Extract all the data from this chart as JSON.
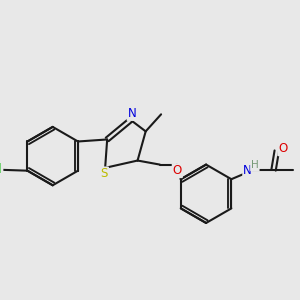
{
  "bg_color": "#e8e8e8",
  "bond_color": "#1a1a1a",
  "bond_lw": 1.5,
  "atom_colors": {
    "Cl": "#00bb00",
    "S": "#bbbb00",
    "N": "#0000dd",
    "O": "#dd0000",
    "H": "#779977"
  },
  "font_size": 8.5
}
